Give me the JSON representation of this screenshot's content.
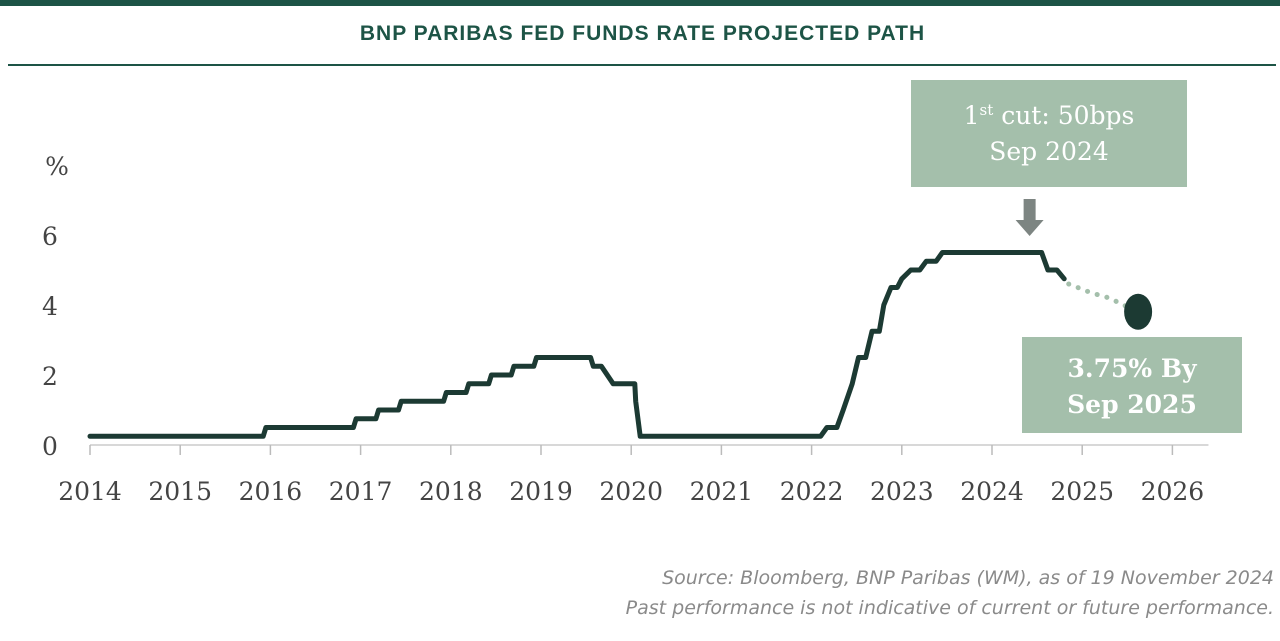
{
  "title": "BNP PARIBAS FED FUNDS RATE PROJECTED PATH",
  "colors": {
    "brand": "#1d5446",
    "line": "#1c3a33",
    "projection_dots": "#a4bfab",
    "annotation_box": "#a4bfab",
    "arrow": "#7d8582"
  },
  "chart_data": {
    "type": "line",
    "title": "BNP PARIBAS FED FUNDS RATE PROJECTED PATH",
    "ylabel": "%",
    "xlabel": "",
    "xlim": [
      2014,
      2026.4
    ],
    "ylim": [
      0,
      6.5
    ],
    "yticks": [
      0,
      2,
      4,
      6
    ],
    "xticks": [
      2014,
      2015,
      2016,
      2017,
      2018,
      2019,
      2020,
      2021,
      2022,
      2023,
      2024,
      2025,
      2026
    ],
    "grid": false,
    "series": [
      {
        "style": "solid",
        "points": [
          [
            2014.0,
            0.25
          ],
          [
            2015.92,
            0.25
          ],
          [
            2015.95,
            0.5
          ],
          [
            2016.92,
            0.5
          ],
          [
            2016.95,
            0.75
          ],
          [
            2017.17,
            0.75
          ],
          [
            2017.2,
            1.0
          ],
          [
            2017.42,
            1.0
          ],
          [
            2017.45,
            1.25
          ],
          [
            2017.92,
            1.25
          ],
          [
            2017.95,
            1.5
          ],
          [
            2018.17,
            1.5
          ],
          [
            2018.2,
            1.75
          ],
          [
            2018.42,
            1.75
          ],
          [
            2018.45,
            2.0
          ],
          [
            2018.67,
            2.0
          ],
          [
            2018.7,
            2.25
          ],
          [
            2018.92,
            2.25
          ],
          [
            2018.95,
            2.5
          ],
          [
            2019.55,
            2.5
          ],
          [
            2019.58,
            2.25
          ],
          [
            2019.67,
            2.25
          ],
          [
            2019.8,
            1.75
          ],
          [
            2020.04,
            1.75
          ],
          [
            2020.05,
            1.25
          ],
          [
            2020.1,
            0.25
          ],
          [
            2022.1,
            0.25
          ],
          [
            2022.17,
            0.5
          ],
          [
            2022.28,
            0.5
          ],
          [
            2022.35,
            1.0
          ],
          [
            2022.45,
            1.75
          ],
          [
            2022.52,
            2.5
          ],
          [
            2022.6,
            2.5
          ],
          [
            2022.67,
            3.25
          ],
          [
            2022.75,
            3.25
          ],
          [
            2022.8,
            4.0
          ],
          [
            2022.88,
            4.5
          ],
          [
            2022.95,
            4.5
          ],
          [
            2023.0,
            4.75
          ],
          [
            2023.1,
            5.0
          ],
          [
            2023.2,
            5.0
          ],
          [
            2023.27,
            5.25
          ],
          [
            2023.38,
            5.25
          ],
          [
            2023.45,
            5.5
          ],
          [
            2024.55,
            5.5
          ],
          [
            2024.62,
            5.0
          ],
          [
            2024.72,
            5.0
          ],
          [
            2024.8,
            4.75
          ]
        ]
      },
      {
        "style": "dotted",
        "points": [
          [
            2024.85,
            4.6
          ],
          [
            2025.1,
            4.35
          ],
          [
            2025.3,
            4.2
          ],
          [
            2025.5,
            3.95
          ]
        ]
      }
    ],
    "markers": [
      {
        "x": 2025.62,
        "y": 3.75,
        "type": "circle"
      }
    ],
    "annotations": [
      {
        "kind": "box",
        "line1_base": "1",
        "line1_sup": "st",
        "line1_rest": " cut: 50bps",
        "line2": "Sep 2024",
        "arrow_to_x": 2024.55
      },
      {
        "kind": "box",
        "line1": "3.75% By",
        "line2": "Sep 2025"
      }
    ]
  },
  "footer": {
    "source": "Source: Bloomberg, BNP Paribas (WM), as of 19 November 2024",
    "disclaimer": "Past performance is not indicative of current or future performance."
  }
}
